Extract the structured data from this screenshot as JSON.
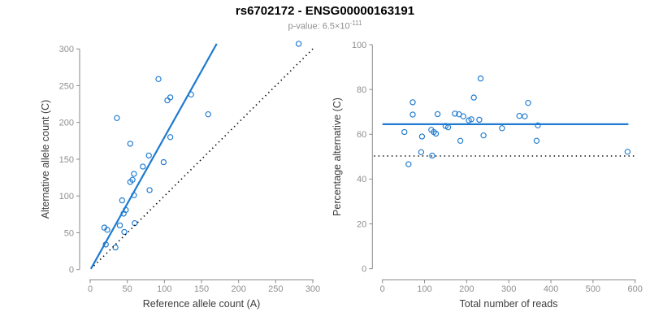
{
  "header": {
    "title": "rs6702172 - ENSG00000163191",
    "pvalue_base": "p-value: 6.5×10",
    "pvalue_exponent": "-111"
  },
  "colors": {
    "accent_blue": "#1d7ad0",
    "axis_line": "#8a8a8a",
    "tick_label": "#8f8f8f",
    "axis_title": "#3d3d3d",
    "dotted_line": "#000000"
  },
  "chart_data": [
    {
      "type": "scatter",
      "name": "allele-counts-scatter",
      "xlabel": "Reference allele count (A)",
      "ylabel": "Alternative allele count (C)",
      "xlim": [
        0,
        300
      ],
      "ylim": [
        0,
        300
      ],
      "xticks": [
        0,
        50,
        100,
        150,
        200,
        250,
        300
      ],
      "yticks": [
        0,
        50,
        100,
        150,
        200,
        250,
        300
      ],
      "grid": false,
      "legend": null,
      "points": [
        [
          21,
          34
        ],
        [
          34,
          30
        ],
        [
          19,
          57
        ],
        [
          23,
          54
        ],
        [
          46,
          51
        ],
        [
          40,
          60
        ],
        [
          60,
          63
        ],
        [
          45,
          76
        ],
        [
          48,
          81
        ],
        [
          43,
          94
        ],
        [
          59,
          101
        ],
        [
          80,
          108
        ],
        [
          54,
          119
        ],
        [
          57,
          122
        ],
        [
          59,
          130
        ],
        [
          71,
          140
        ],
        [
          99,
          146
        ],
        [
          79,
          155
        ],
        [
          54,
          171
        ],
        [
          108,
          180
        ],
        [
          36,
          206
        ],
        [
          92,
          259
        ],
        [
          104,
          230
        ],
        [
          108,
          234
        ],
        [
          136,
          238
        ],
        [
          159,
          211
        ],
        [
          281,
          307
        ]
      ],
      "lines": [
        {
          "name": "regression-line",
          "style": "solid",
          "color_key": "accent_blue",
          "from": [
            1,
            1
          ],
          "to": [
            170.5,
            307
          ]
        },
        {
          "name": "identity-line",
          "style": "dotted",
          "color_key": "dotted_line",
          "from": [
            5,
            5
          ],
          "to": [
            301,
            301
          ]
        }
      ]
    },
    {
      "type": "scatter",
      "name": "percentage-vs-reads-scatter",
      "xlabel": "Total number of reads",
      "ylabel": "Percentage alternative (C)",
      "xlim": [
        0,
        600
      ],
      "ylim": [
        0,
        100
      ],
      "xticks": [
        0,
        100,
        200,
        300,
        400,
        500,
        600
      ],
      "yticks": [
        0,
        20,
        40,
        60,
        80,
        100
      ],
      "grid": false,
      "legend": null,
      "points": [
        [
          52,
          61
        ],
        [
          62,
          46.6
        ],
        [
          72,
          74.3
        ],
        [
          72,
          68.8
        ],
        [
          92,
          52
        ],
        [
          94,
          59
        ],
        [
          116,
          62
        ],
        [
          122,
          61
        ],
        [
          127,
          60.3
        ],
        [
          118,
          50.5
        ],
        [
          131,
          69
        ],
        [
          150,
          63.7
        ],
        [
          156,
          63.1
        ],
        [
          172,
          69.2
        ],
        [
          182,
          68.9
        ],
        [
          185,
          57.1
        ],
        [
          192,
          68
        ],
        [
          205,
          66.2
        ],
        [
          211,
          66.7
        ],
        [
          217,
          76.4
        ],
        [
          230,
          66.5
        ],
        [
          233,
          84.9
        ],
        [
          240,
          59.5
        ],
        [
          284,
          62.7
        ],
        [
          325,
          68.2
        ],
        [
          338,
          68
        ],
        [
          346,
          74
        ],
        [
          366,
          57.1
        ],
        [
          369,
          64
        ],
        [
          582,
          52.2
        ]
      ],
      "lines": [
        {
          "name": "mean-percentage-line",
          "style": "solid",
          "color_key": "accent_blue",
          "from": [
            0,
            64.5
          ],
          "to": [
            584,
            64.5
          ]
        },
        {
          "name": "expected-50-line",
          "style": "dotted",
          "color_key": "dotted_line",
          "from": [
            -20,
            50.3
          ],
          "to": [
            604,
            50.3
          ]
        }
      ]
    }
  ]
}
